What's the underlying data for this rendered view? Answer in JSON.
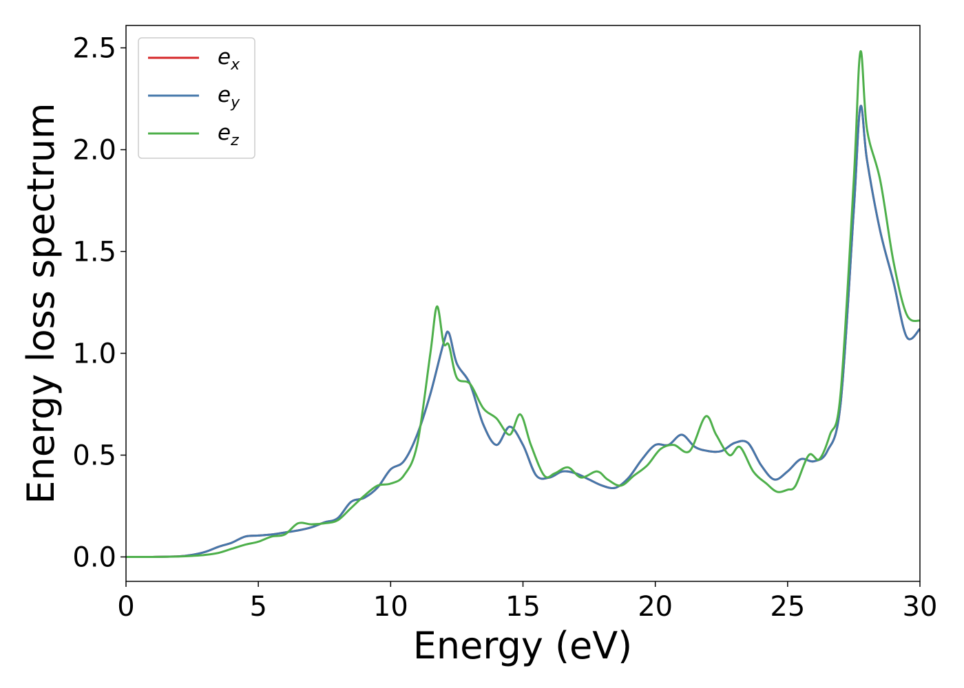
{
  "chart_data": {
    "type": "line",
    "title": "",
    "xlabel": "Energy (eV)",
    "ylabel": "Energy loss spectrum",
    "xlim": [
      0,
      30
    ],
    "ylim": [
      -0.12,
      2.61
    ],
    "xticks": [
      "0",
      "5",
      "10",
      "15",
      "20",
      "25",
      "30"
    ],
    "yticks": [
      "0.0",
      "0.5",
      "1.0",
      "1.5",
      "2.0",
      "2.5"
    ],
    "grid": false,
    "legend_position": "top-left",
    "series": [
      {
        "name": "e",
        "subscript": "x",
        "color": "#d62728",
        "x": [
          0,
          1,
          2,
          2.5,
          3,
          3.5,
          4,
          4.5,
          5,
          5.5,
          6,
          6.5,
          7,
          7.5,
          8,
          8.5,
          9,
          9.5,
          10,
          10.5,
          11,
          11.5,
          12,
          12.2,
          12.5,
          13,
          13.5,
          14,
          14.5,
          15,
          15.5,
          16,
          16.5,
          17,
          17.5,
          18,
          18.5,
          19,
          19.5,
          20,
          20.5,
          21,
          21.5,
          22,
          22.5,
          23,
          23.5,
          24,
          24.5,
          25,
          25.5,
          26,
          26.5,
          27,
          27.5,
          27.75,
          28,
          28.5,
          29,
          29.5,
          30
        ],
        "y": [
          0,
          0,
          0.003,
          0.01,
          0.025,
          0.05,
          0.07,
          0.1,
          0.105,
          0.11,
          0.12,
          0.13,
          0.145,
          0.17,
          0.19,
          0.27,
          0.29,
          0.34,
          0.43,
          0.47,
          0.6,
          0.8,
          1.05,
          1.1,
          0.95,
          0.85,
          0.65,
          0.55,
          0.64,
          0.55,
          0.4,
          0.39,
          0.42,
          0.41,
          0.38,
          0.35,
          0.34,
          0.39,
          0.48,
          0.55,
          0.55,
          0.6,
          0.54,
          0.52,
          0.52,
          0.56,
          0.56,
          0.45,
          0.38,
          0.42,
          0.48,
          0.47,
          0.52,
          0.75,
          1.7,
          2.21,
          1.95,
          1.6,
          1.35,
          1.08,
          1.12
        ]
      },
      {
        "name": "e",
        "subscript": "y",
        "color": "#4477aa",
        "x": [
          0,
          1,
          2,
          2.5,
          3,
          3.5,
          4,
          4.5,
          5,
          5.5,
          6,
          6.5,
          7,
          7.5,
          8,
          8.5,
          9,
          9.5,
          10,
          10.5,
          11,
          11.5,
          12,
          12.2,
          12.5,
          13,
          13.5,
          14,
          14.5,
          15,
          15.5,
          16,
          16.5,
          17,
          17.5,
          18,
          18.5,
          19,
          19.5,
          20,
          20.5,
          21,
          21.5,
          22,
          22.5,
          23,
          23.5,
          24,
          24.5,
          25,
          25.5,
          26,
          26.5,
          27,
          27.5,
          27.75,
          28,
          28.5,
          29,
          29.5,
          30
        ],
        "y": [
          0,
          0,
          0.003,
          0.01,
          0.025,
          0.05,
          0.07,
          0.1,
          0.105,
          0.11,
          0.12,
          0.13,
          0.145,
          0.17,
          0.19,
          0.27,
          0.29,
          0.34,
          0.43,
          0.47,
          0.6,
          0.8,
          1.05,
          1.1,
          0.95,
          0.85,
          0.65,
          0.55,
          0.64,
          0.55,
          0.4,
          0.39,
          0.42,
          0.41,
          0.38,
          0.35,
          0.34,
          0.39,
          0.48,
          0.55,
          0.55,
          0.6,
          0.54,
          0.52,
          0.52,
          0.56,
          0.56,
          0.45,
          0.38,
          0.42,
          0.48,
          0.47,
          0.52,
          0.75,
          1.7,
          2.21,
          1.95,
          1.6,
          1.35,
          1.08,
          1.12
        ]
      },
      {
        "name": "e",
        "subscript": "z",
        "color": "#4daf4a",
        "x": [
          0,
          1,
          2,
          2.5,
          3,
          3.5,
          4,
          4.5,
          5,
          5.5,
          6,
          6.5,
          7,
          7.5,
          8,
          8.5,
          9,
          9.5,
          10,
          10.5,
          11,
          11.5,
          11.75,
          12,
          12.2,
          12.5,
          13,
          13.5,
          14,
          14.5,
          14.9,
          15.3,
          15.8,
          16.2,
          16.7,
          17.2,
          17.8,
          18.2,
          18.7,
          19.2,
          19.7,
          20.2,
          20.7,
          21.3,
          21.9,
          22.3,
          22.8,
          23.2,
          23.7,
          24.2,
          24.6,
          25,
          25.3,
          25.8,
          26.2,
          26.6,
          27,
          27.5,
          27.75,
          28,
          28.5,
          29,
          29.5,
          30
        ],
        "y": [
          0,
          0,
          0.002,
          0.005,
          0.01,
          0.02,
          0.04,
          0.06,
          0.075,
          0.1,
          0.11,
          0.165,
          0.16,
          0.165,
          0.18,
          0.24,
          0.3,
          0.35,
          0.36,
          0.4,
          0.55,
          1.0,
          1.23,
          1.05,
          1.04,
          0.88,
          0.85,
          0.73,
          0.68,
          0.6,
          0.7,
          0.55,
          0.4,
          0.41,
          0.44,
          0.39,
          0.42,
          0.38,
          0.35,
          0.4,
          0.45,
          0.53,
          0.55,
          0.52,
          0.69,
          0.6,
          0.5,
          0.54,
          0.42,
          0.36,
          0.32,
          0.33,
          0.35,
          0.5,
          0.48,
          0.6,
          0.8,
          1.85,
          2.48,
          2.1,
          1.85,
          1.45,
          1.19,
          1.16
        ]
      }
    ]
  }
}
